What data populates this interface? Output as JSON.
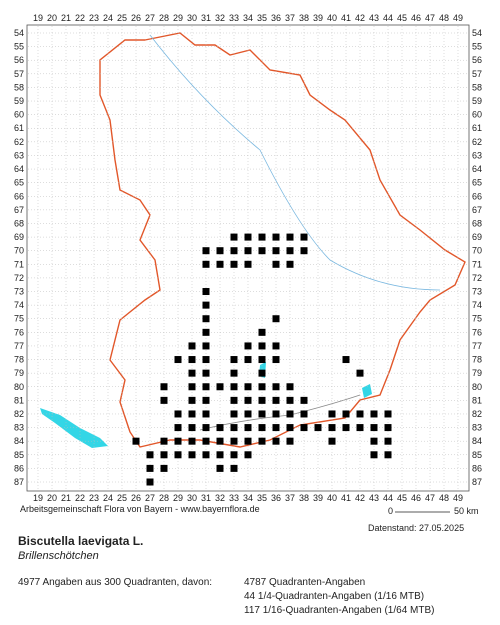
{
  "columns": [
    19,
    20,
    21,
    22,
    23,
    24,
    25,
    26,
    27,
    28,
    29,
    30,
    31,
    32,
    33,
    34,
    35,
    36,
    37,
    38,
    39,
    40,
    41,
    42,
    43,
    44,
    45,
    46,
    47,
    48,
    49
  ],
  "rows": [
    54,
    55,
    56,
    57,
    58,
    59,
    60,
    61,
    62,
    63,
    64,
    65,
    66,
    67,
    68,
    69,
    70,
    71,
    72,
    73,
    74,
    75,
    76,
    77,
    78,
    79,
    80,
    81,
    82,
    83,
    84,
    85,
    86,
    87
  ],
  "cells": [
    [
      33,
      69
    ],
    [
      34,
      69
    ],
    [
      35,
      69
    ],
    [
      36,
      69
    ],
    [
      37,
      69
    ],
    [
      38,
      69
    ],
    [
      31,
      70
    ],
    [
      32,
      70
    ],
    [
      33,
      70
    ],
    [
      34,
      70
    ],
    [
      35,
      70
    ],
    [
      36,
      70
    ],
    [
      37,
      70
    ],
    [
      38,
      70
    ],
    [
      31,
      71
    ],
    [
      32,
      71
    ],
    [
      33,
      71
    ],
    [
      34,
      71
    ],
    [
      36,
      71
    ],
    [
      37,
      71
    ],
    [
      31,
      73
    ],
    [
      31,
      74
    ],
    [
      31,
      75
    ],
    [
      36,
      75
    ],
    [
      31,
      76
    ],
    [
      35,
      76
    ],
    [
      30,
      77
    ],
    [
      31,
      77
    ],
    [
      34,
      77
    ],
    [
      35,
      77
    ],
    [
      36,
      77
    ],
    [
      29,
      78
    ],
    [
      30,
      78
    ],
    [
      31,
      78
    ],
    [
      33,
      78
    ],
    [
      34,
      78
    ],
    [
      35,
      78
    ],
    [
      36,
      78
    ],
    [
      41,
      78
    ],
    [
      30,
      79
    ],
    [
      31,
      79
    ],
    [
      33,
      79
    ],
    [
      35,
      79
    ],
    [
      42,
      79
    ],
    [
      28,
      80
    ],
    [
      30,
      80
    ],
    [
      31,
      80
    ],
    [
      32,
      80
    ],
    [
      33,
      80
    ],
    [
      34,
      80
    ],
    [
      35,
      80
    ],
    [
      36,
      80
    ],
    [
      37,
      80
    ],
    [
      28,
      81
    ],
    [
      30,
      81
    ],
    [
      31,
      81
    ],
    [
      33,
      81
    ],
    [
      34,
      81
    ],
    [
      35,
      81
    ],
    [
      36,
      81
    ],
    [
      37,
      81
    ],
    [
      38,
      81
    ],
    [
      29,
      82
    ],
    [
      30,
      82
    ],
    [
      31,
      82
    ],
    [
      33,
      82
    ],
    [
      34,
      82
    ],
    [
      35,
      82
    ],
    [
      36,
      82
    ],
    [
      37,
      82
    ],
    [
      38,
      82
    ],
    [
      40,
      82
    ],
    [
      41,
      82
    ],
    [
      42,
      82
    ],
    [
      43,
      82
    ],
    [
      44,
      82
    ],
    [
      29,
      83
    ],
    [
      30,
      83
    ],
    [
      31,
      83
    ],
    [
      32,
      83
    ],
    [
      33,
      83
    ],
    [
      34,
      83
    ],
    [
      35,
      83
    ],
    [
      36,
      83
    ],
    [
      37,
      83
    ],
    [
      38,
      83
    ],
    [
      39,
      83
    ],
    [
      40,
      83
    ],
    [
      41,
      83
    ],
    [
      42,
      83
    ],
    [
      43,
      83
    ],
    [
      44,
      83
    ],
    [
      26,
      84
    ],
    [
      28,
      84
    ],
    [
      29,
      84
    ],
    [
      30,
      84
    ],
    [
      31,
      84
    ],
    [
      32,
      84
    ],
    [
      33,
      84
    ],
    [
      34,
      84
    ],
    [
      35,
      84
    ],
    [
      36,
      84
    ],
    [
      37,
      84
    ],
    [
      40,
      84
    ],
    [
      43,
      84
    ],
    [
      44,
      84
    ],
    [
      27,
      85
    ],
    [
      28,
      85
    ],
    [
      29,
      85
    ],
    [
      30,
      85
    ],
    [
      31,
      85
    ],
    [
      32,
      85
    ],
    [
      33,
      85
    ],
    [
      34,
      85
    ],
    [
      43,
      85
    ],
    [
      44,
      85
    ],
    [
      27,
      86
    ],
    [
      28,
      86
    ],
    [
      32,
      86
    ],
    [
      33,
      86
    ],
    [
      27,
      87
    ]
  ],
  "credit": "Arbeitsgemeinschaft Flora von Bayern - www.bayernflora.de",
  "date": "Datenstand: 27.05.2025",
  "scale": {
    "start": "0",
    "end": "50 km"
  },
  "species": "Biscutella laevigata L.",
  "common_name": "Brillenschötchen",
  "summary": "4977 Angaben aus 300 Quadranten, davon:",
  "details": [
    "4787 Quadranten-Angaben",
    "44 1/4-Quadranten-Angaben (1/16 MTB)",
    "117 1/16-Quadranten-Angaben (1/64 MTB)"
  ]
}
